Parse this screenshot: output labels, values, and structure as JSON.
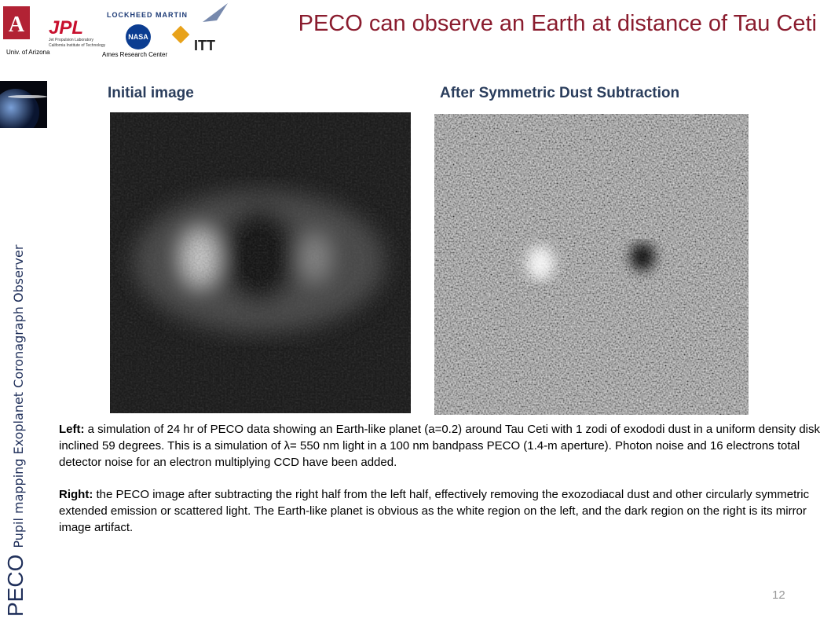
{
  "header": {
    "title": "PECO can observe an Earth at distance of Tau Ceti",
    "logos": {
      "arizona": "Univ. of Arizona",
      "jpl": "JPL",
      "jpl_line1": "Jet Propulsion Laboratory",
      "jpl_line2": "California Institute of Technology",
      "lockheed": "LOCKHEED MARTIN",
      "nasa": "NASA",
      "ames": "Ames Research Center",
      "itt": "ITT"
    }
  },
  "sidebar": {
    "acronym": "PECO",
    "expansion": "Pupil mapping Exoplanet Coronagraph Observer"
  },
  "images": [
    {
      "label": "Initial image"
    },
    {
      "label": "After Symmetric Dust Subtraction"
    }
  ],
  "paragraphs": [
    {
      "lead": "Left:",
      "text": " a simulation of 24 hr of PECO data showing an Earth-like planet (a=0.2) around Tau Ceti with 1 zodi of exododi dust in a uniform density disk inclined 59 degrees. This is a simulation of λ= 550 nm light in a 100 nm bandpass PECO (1.4-m aperture). Photon noise and 16 electrons total detector noise for an electron  multiplying CCD have been added."
    },
    {
      "lead": "Right:",
      "text": " the PECO image after subtracting the right half from the left half, effectively removing the exozodiacal dust and other circularly symmetric extended emission or scattered light. The Earth-like planet is obvious as the white region on the left, and the dark region on the right is its mirror image artifact."
    }
  ],
  "page_number": "12"
}
